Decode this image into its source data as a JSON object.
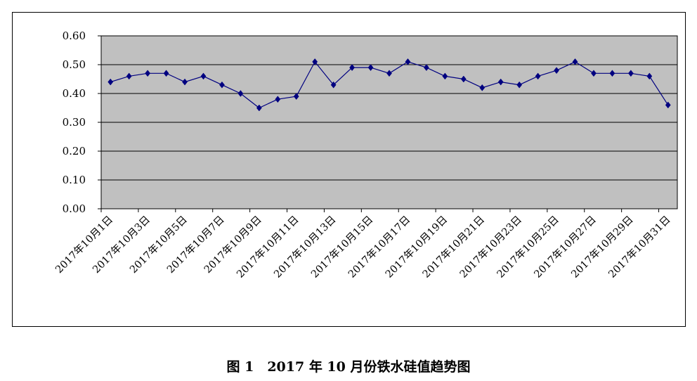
{
  "caption": "图 1　2017 年 10 月份铁水硅值趋势图",
  "chart_data": {
    "type": "line",
    "categories": [
      "2017年10月1日",
      "2017年10月2日",
      "2017年10月3日",
      "2017年10月4日",
      "2017年10月5日",
      "2017年10月6日",
      "2017年10月7日",
      "2017年10月8日",
      "2017年10月9日",
      "2017年10月10日",
      "2017年10月11日",
      "2017年10月12日",
      "2017年10月13日",
      "2017年10月14日",
      "2017年10月15日",
      "2017年10月16日",
      "2017年10月17日",
      "2017年10月18日",
      "2017年10月19日",
      "2017年10月20日",
      "2017年10月21日",
      "2017年10月22日",
      "2017年10月23日",
      "2017年10月24日",
      "2017年10月25日",
      "2017年10月26日",
      "2017年10月27日",
      "2017年10月28日",
      "2017年10月29日",
      "2017年10月30日",
      "2017年10月31日"
    ],
    "tick_labels": [
      "2017年10月1日",
      "2017年10月3日",
      "2017年10月5日",
      "2017年10月7日",
      "2017年10月9日",
      "2017年10月11日",
      "2017年10月13日",
      "2017年10月15日",
      "2017年10月17日",
      "2017年10月19日",
      "2017年10月21日",
      "2017年10月23日",
      "2017年10月25日",
      "2017年10月27日",
      "2017年10月29日",
      "2017年10月31日"
    ],
    "values": [
      0.44,
      0.46,
      0.47,
      0.47,
      0.44,
      0.46,
      0.43,
      0.4,
      0.35,
      0.38,
      0.39,
      0.51,
      0.43,
      0.49,
      0.49,
      0.47,
      0.51,
      0.49,
      0.46,
      0.45,
      0.42,
      0.44,
      0.43,
      0.46,
      0.48,
      0.51,
      0.47,
      0.47,
      0.47,
      0.46,
      0.36
    ],
    "y_ticks": [
      "0.00",
      "0.10",
      "0.20",
      "0.30",
      "0.40",
      "0.50",
      "0.60"
    ],
    "ylim": [
      0,
      0.6
    ],
    "grid": true,
    "legend": false,
    "colors": {
      "line": "#000080",
      "marker": "#000080",
      "plot_background": "#c0c0c0",
      "grid": "#000000"
    }
  }
}
